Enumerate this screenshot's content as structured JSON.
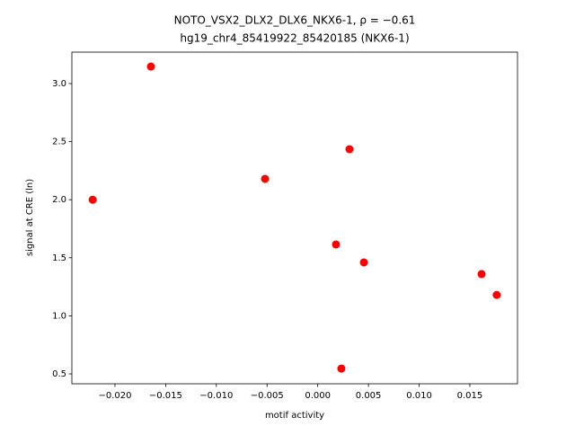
{
  "chart_data": {
    "type": "scatter",
    "title": "NOTO_VSX2_DLX2_DLX6_NKX6-1, ρ = −0.61",
    "subtitle": "hg19_chr4_85419922_85420185 (NKX6-1)",
    "x_label": "motif activity",
    "y_label": "signal at CRE (ln)",
    "color": "#ff0000",
    "x": [
      -0.0222,
      -0.01645,
      -0.0052,
      0.00313,
      0.0018,
      0.00455,
      0.01616,
      0.01765,
      0.00233
    ],
    "y": [
      2.0,
      3.147,
      2.18,
      2.435,
      1.615,
      1.46,
      1.36,
      1.18,
      0.546
    ],
    "xlim": [
      -0.02425,
      0.0197
    ],
    "ylim": [
      0.415,
      3.271
    ],
    "xticks": [
      {
        "value": -0.02,
        "label": "−0.020"
      },
      {
        "value": -0.015,
        "label": "−0.015"
      },
      {
        "value": -0.01,
        "label": "−0.010"
      },
      {
        "value": -0.005,
        "label": "−0.005"
      },
      {
        "value": 0,
        "label": "0.000"
      },
      {
        "value": 0.005,
        "label": "0.005"
      },
      {
        "value": 0.01,
        "label": "0.010"
      },
      {
        "value": 0.015,
        "label": "0.015"
      }
    ],
    "yticks": [
      0.5,
      {
        "value": 1,
        "label": "1.0"
      },
      1.5,
      {
        "value": 2,
        "label": "2.0"
      },
      2.5,
      {
        "value": 3,
        "label": "3.0"
      }
    ]
  }
}
